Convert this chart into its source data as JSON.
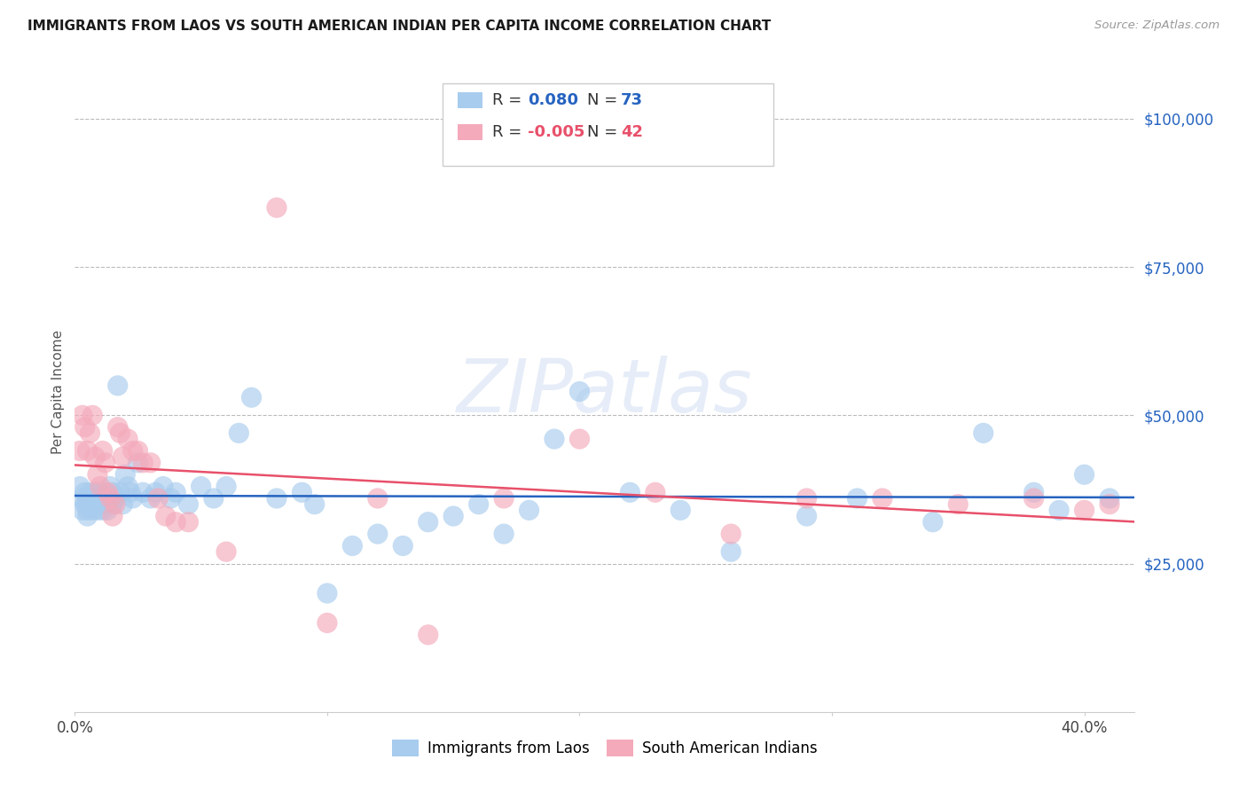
{
  "title": "IMMIGRANTS FROM LAOS VS SOUTH AMERICAN INDIAN PER CAPITA INCOME CORRELATION CHART",
  "source": "Source: ZipAtlas.com",
  "ylabel": "Per Capita Income",
  "xlim": [
    0.0,
    0.42
  ],
  "ylim": [
    0,
    108000
  ],
  "yticks": [
    25000,
    50000,
    75000,
    100000
  ],
  "ytick_labels": [
    "$25,000",
    "$50,000",
    "$75,000",
    "$100,000"
  ],
  "blue_color": "#A8CCEE",
  "pink_color": "#F4AABB",
  "blue_line_color": "#2563C0",
  "pink_line_color": "#E8506A",
  "legend_blue_R": "0.080",
  "legend_blue_N": "73",
  "legend_pink_R": "-0.005",
  "legend_pink_N": "42",
  "legend_label_blue": "Immigrants from Laos",
  "legend_label_pink": "South American Indians",
  "blue_scatter_x": [
    0.002,
    0.003,
    0.003,
    0.004,
    0.004,
    0.005,
    0.005,
    0.005,
    0.006,
    0.006,
    0.007,
    0.007,
    0.008,
    0.008,
    0.009,
    0.009,
    0.01,
    0.01,
    0.011,
    0.011,
    0.012,
    0.012,
    0.013,
    0.013,
    0.014,
    0.015,
    0.015,
    0.016,
    0.017,
    0.018,
    0.019,
    0.02,
    0.021,
    0.022,
    0.023,
    0.025,
    0.027,
    0.03,
    0.032,
    0.035,
    0.038,
    0.04,
    0.045,
    0.05,
    0.055,
    0.06,
    0.065,
    0.07,
    0.08,
    0.09,
    0.095,
    0.1,
    0.11,
    0.12,
    0.13,
    0.14,
    0.15,
    0.16,
    0.17,
    0.18,
    0.19,
    0.2,
    0.22,
    0.24,
    0.26,
    0.29,
    0.31,
    0.34,
    0.36,
    0.38,
    0.39,
    0.4,
    0.41
  ],
  "blue_scatter_y": [
    38000,
    36000,
    34000,
    35000,
    37000,
    36000,
    34000,
    33000,
    37000,
    35000,
    36000,
    34000,
    37000,
    35000,
    36000,
    34000,
    37000,
    35000,
    36000,
    34000,
    37000,
    35000,
    36000,
    34000,
    38000,
    37000,
    35000,
    36000,
    55000,
    37000,
    35000,
    40000,
    38000,
    37000,
    36000,
    42000,
    37000,
    36000,
    37000,
    38000,
    36000,
    37000,
    35000,
    38000,
    36000,
    38000,
    47000,
    53000,
    36000,
    37000,
    35000,
    20000,
    28000,
    30000,
    28000,
    32000,
    33000,
    35000,
    30000,
    34000,
    46000,
    54000,
    37000,
    34000,
    27000,
    33000,
    36000,
    32000,
    47000,
    37000,
    34000,
    40000,
    36000
  ],
  "pink_scatter_x": [
    0.002,
    0.003,
    0.004,
    0.005,
    0.006,
    0.007,
    0.008,
    0.009,
    0.01,
    0.011,
    0.012,
    0.013,
    0.014,
    0.015,
    0.016,
    0.017,
    0.018,
    0.019,
    0.021,
    0.023,
    0.025,
    0.027,
    0.03,
    0.033,
    0.036,
    0.04,
    0.045,
    0.06,
    0.08,
    0.1,
    0.12,
    0.14,
    0.17,
    0.2,
    0.23,
    0.26,
    0.29,
    0.32,
    0.35,
    0.38,
    0.4,
    0.41
  ],
  "pink_scatter_y": [
    44000,
    50000,
    48000,
    44000,
    47000,
    50000,
    43000,
    40000,
    38000,
    44000,
    42000,
    37000,
    36000,
    33000,
    35000,
    48000,
    47000,
    43000,
    46000,
    44000,
    44000,
    42000,
    42000,
    36000,
    33000,
    32000,
    32000,
    27000,
    85000,
    15000,
    36000,
    13000,
    36000,
    46000,
    37000,
    30000,
    36000,
    36000,
    35000,
    36000,
    34000,
    35000
  ]
}
